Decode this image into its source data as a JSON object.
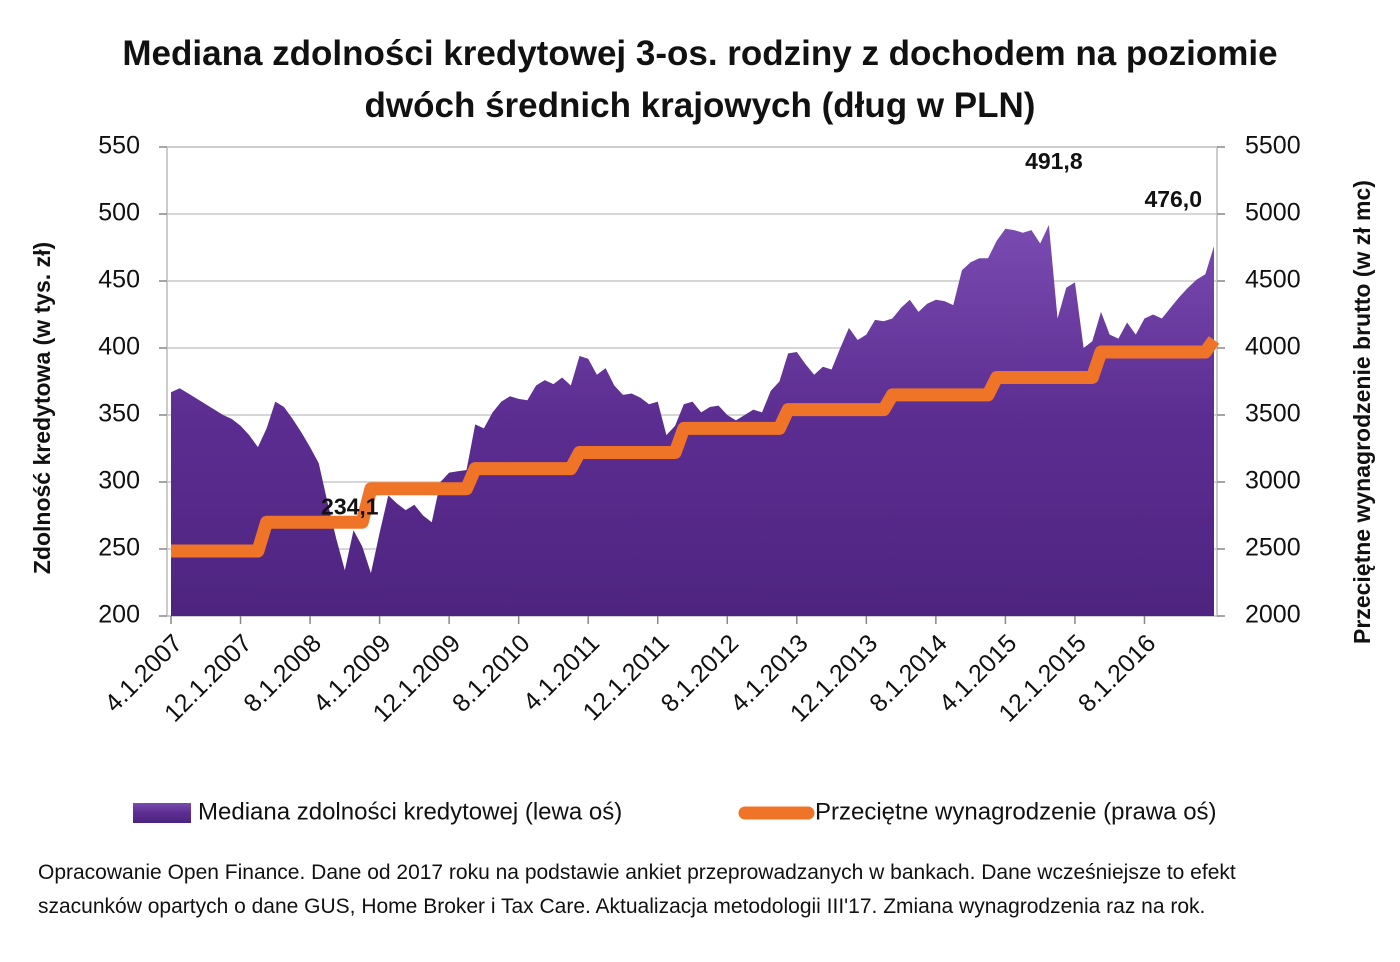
{
  "chart_data": {
    "type": "area",
    "title": "Mediana zdolności kredytowej 3-os. rodziny z dochodem na poziomie dwóch średnich krajowych (dług w PLN)",
    "y_label": "Zdolność kredytowa (w tys. zł)",
    "y2_label": "Przeciętne wynagrodzenie brutto (w zł mc)",
    "footnote": "Opracowanie Open Finance. Dane od 2017 roku na podstawie ankiet przeprowadzanych w bankach. Dane wcześniejsze to efekt szacunków opartych o dane GUS, Home Broker i Tax Care. Aktualizacja metodologii III'17. Zmiana wynagrodzenia raz na rok.",
    "categories": [
      "4.1.2007",
      null,
      null,
      null,
      null,
      null,
      null,
      null,
      "12.1.2007",
      null,
      null,
      null,
      null,
      null,
      null,
      null,
      "8.1.2008",
      null,
      null,
      null,
      null,
      null,
      null,
      null,
      "4.1.2009",
      null,
      null,
      null,
      null,
      null,
      null,
      null,
      "12.1.2009",
      null,
      null,
      null,
      null,
      null,
      null,
      null,
      "8.1.2010",
      null,
      null,
      null,
      null,
      null,
      null,
      null,
      "4.1.2011",
      null,
      null,
      null,
      null,
      null,
      null,
      null,
      "12.1.2011",
      null,
      null,
      null,
      null,
      null,
      null,
      null,
      "8.1.2012",
      null,
      null,
      null,
      null,
      null,
      null,
      null,
      "4.1.2013",
      null,
      null,
      null,
      null,
      null,
      null,
      null,
      "12.1.2013",
      null,
      null,
      null,
      null,
      null,
      null,
      null,
      "8.1.2014",
      null,
      null,
      null,
      null,
      null,
      null,
      null,
      "4.1.2015",
      null,
      null,
      null,
      null,
      null,
      null,
      null,
      "12.1.2015",
      null,
      null,
      null,
      null,
      null,
      null,
      null,
      "8.1.2016",
      null,
      null,
      null,
      null,
      null,
      null,
      null,
      null
    ],
    "series": [
      {
        "name": "Mediana zdolności kredytowej (lewa oś)",
        "type": "area",
        "color": "#5c2d91",
        "values": [
          367,
          370,
          366,
          362,
          358,
          354,
          350,
          347,
          342,
          335,
          326,
          340,
          360,
          356,
          347,
          337,
          326,
          314,
          285,
          258,
          234.1,
          264,
          252,
          232,
          262,
          290,
          284,
          279,
          283,
          275,
          270,
          300,
          307,
          308,
          309,
          343,
          340,
          352,
          360,
          364,
          362,
          361,
          372,
          376,
          373,
          378,
          372,
          394,
          392,
          380,
          385,
          372,
          365,
          366,
          363,
          358,
          360,
          335,
          342,
          358,
          360,
          352,
          356,
          357,
          350,
          346,
          350,
          354,
          352,
          368,
          375,
          396,
          397,
          388,
          380,
          386,
          384,
          400,
          415,
          406,
          410,
          421,
          420,
          422,
          430,
          436,
          427,
          433,
          436,
          435,
          432,
          458,
          464,
          467,
          467,
          480,
          489,
          488,
          486,
          488,
          478,
          491.8,
          422,
          445,
          449,
          400,
          405,
          427,
          410,
          407,
          419,
          410,
          422,
          425,
          422,
          430,
          438,
          445,
          451,
          455,
          476
        ],
        "value_labels": [
          null,
          null,
          null,
          null,
          null,
          null,
          null,
          null,
          null,
          null,
          null,
          null,
          null,
          null,
          null,
          null,
          null,
          null,
          null,
          null,
          "234,1",
          null,
          null,
          null,
          null,
          null,
          null,
          null,
          null,
          null,
          null,
          null,
          null,
          null,
          null,
          null,
          null,
          null,
          null,
          null,
          null,
          null,
          null,
          null,
          null,
          null,
          null,
          null,
          null,
          null,
          null,
          null,
          null,
          null,
          null,
          null,
          null,
          null,
          null,
          null,
          null,
          null,
          null,
          null,
          null,
          null,
          null,
          null,
          null,
          null,
          null,
          null,
          null,
          null,
          null,
          null,
          null,
          null,
          null,
          null,
          null,
          null,
          null,
          null,
          null,
          null,
          null,
          null,
          null,
          null,
          null,
          null,
          null,
          null,
          null,
          null,
          null,
          null,
          null,
          null,
          null,
          "491,8",
          null,
          null,
          null,
          null,
          null,
          null,
          null,
          null,
          null,
          null,
          null,
          null,
          null,
          null,
          null,
          null,
          null,
          null,
          "476,0"
        ]
      },
      {
        "name": "Przeciętne wynagrodzenie (prawa oś)",
        "type": "line",
        "axis": "y2",
        "color": "#f07427",
        "values": [
          2485,
          2485,
          2485,
          2485,
          2485,
          2485,
          2485,
          2485,
          2485,
          2485,
          2485,
          2700,
          2700,
          2700,
          2700,
          2700,
          2700,
          2700,
          2700,
          2700,
          2700,
          2700,
          2700,
          2950,
          2950,
          2950,
          2950,
          2950,
          2950,
          2950,
          2950,
          2950,
          2950,
          2950,
          2950,
          3100,
          3100,
          3100,
          3100,
          3100,
          3100,
          3100,
          3100,
          3100,
          3100,
          3100,
          3100,
          3220,
          3220,
          3220,
          3220,
          3220,
          3220,
          3220,
          3220,
          3220,
          3220,
          3220,
          3220,
          3400,
          3400,
          3400,
          3400,
          3400,
          3400,
          3400,
          3400,
          3400,
          3400,
          3400,
          3400,
          3540,
          3540,
          3540,
          3540,
          3540,
          3540,
          3540,
          3540,
          3540,
          3540,
          3540,
          3540,
          3650,
          3650,
          3650,
          3650,
          3650,
          3650,
          3650,
          3650,
          3650,
          3650,
          3650,
          3650,
          3780,
          3780,
          3780,
          3780,
          3780,
          3780,
          3780,
          3780,
          3780,
          3780,
          3780,
          3780,
          3970,
          3970,
          3970,
          3970,
          3970,
          3970,
          3970,
          3970,
          3970,
          3970,
          3970,
          3970,
          3970,
          4060
        ]
      }
    ],
    "ylim": [
      200,
      550
    ],
    "yticks": [
      200,
      250,
      300,
      350,
      400,
      450,
      500,
      550
    ],
    "y2lim": [
      2000,
      5500
    ],
    "y2ticks": [
      2000,
      2500,
      3000,
      3500,
      4000,
      4500,
      5000,
      5500
    ],
    "grid": true,
    "legend": "bottom"
  }
}
